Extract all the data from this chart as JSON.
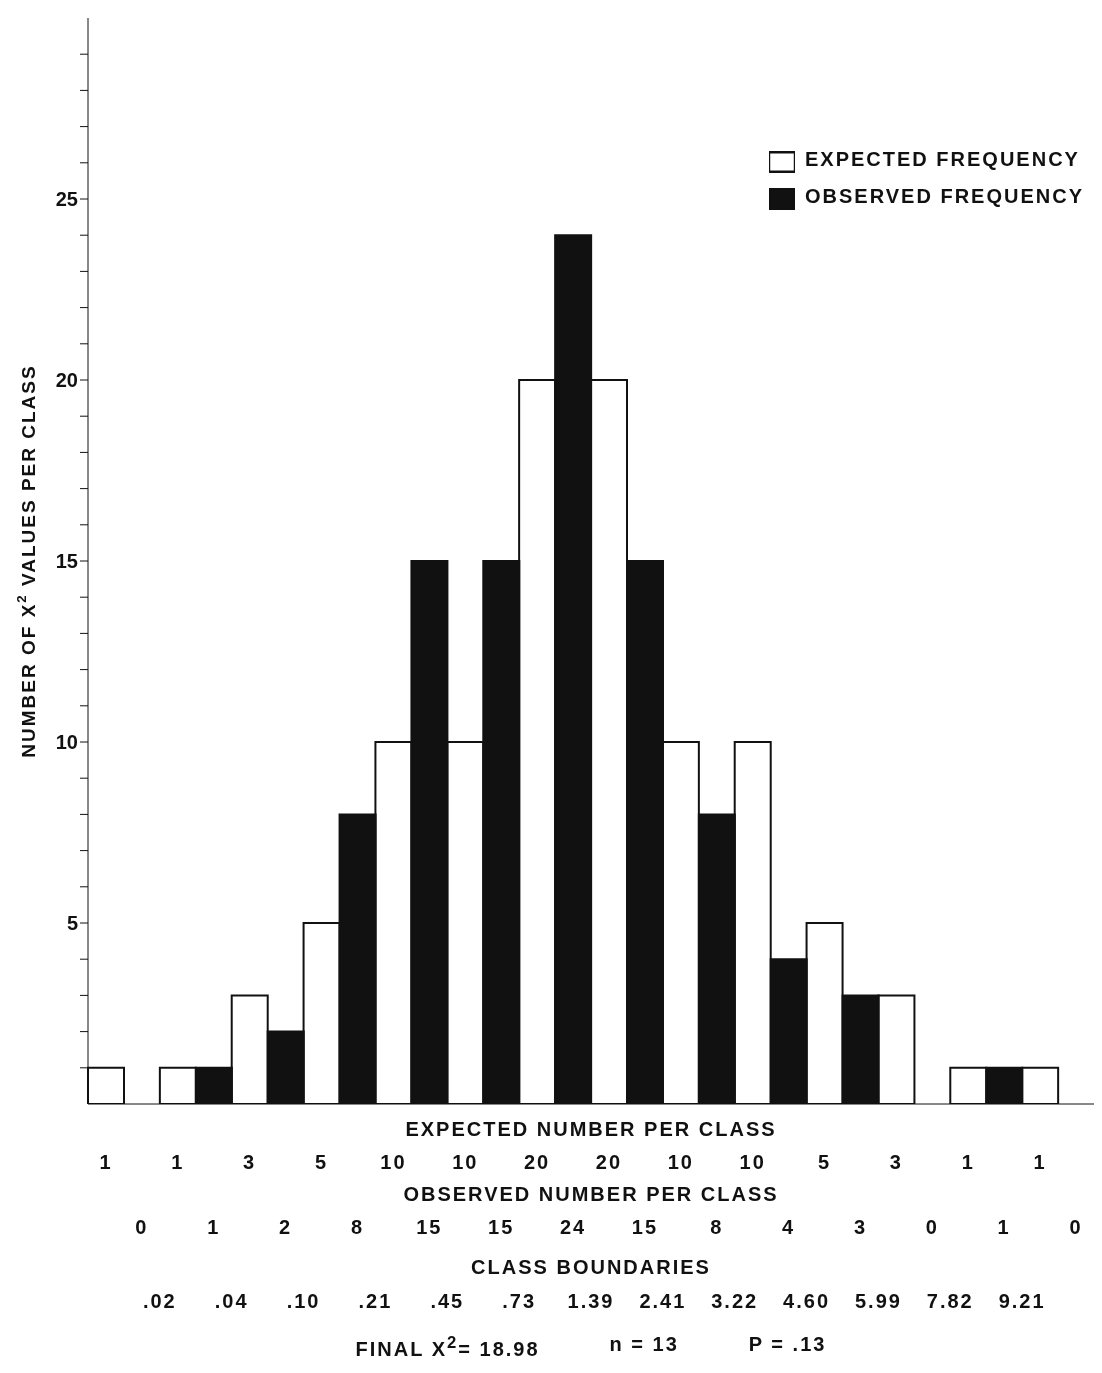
{
  "chart_data": {
    "type": "bar",
    "ylabel": "NUMBER OF X$^{2}$ VALUES PER CLASS",
    "categories": [
      null,
      null,
      null,
      null,
      null,
      null,
      null,
      null,
      null,
      null,
      null,
      null,
      null,
      null
    ],
    "series": [
      {
        "name": "EXPECTED FREQUENCY",
        "color": "#ffffff",
        "values": [
          1,
          1,
          3,
          5,
          10,
          10,
          20,
          20,
          10,
          10,
          5,
          3,
          1,
          1
        ]
      },
      {
        "name": "OBSERVED FREQUENCY",
        "color": "#111111",
        "values": [
          0,
          1,
          2,
          8,
          15,
          15,
          24,
          15,
          8,
          4,
          3,
          0,
          1,
          0
        ]
      }
    ],
    "ylim": [
      0,
      30
    ],
    "yticks": [
      {
        "value": 1,
        "label": null
      },
      {
        "value": 2,
        "label": null
      },
      {
        "value": 3,
        "label": null
      },
      {
        "value": 4,
        "label": null
      },
      5,
      {
        "value": 6,
        "label": null
      },
      {
        "value": 7,
        "label": null
      },
      {
        "value": 8,
        "label": null
      },
      {
        "value": 9,
        "label": null
      },
      10,
      {
        "value": 11,
        "label": null
      },
      {
        "value": 12,
        "label": null
      },
      {
        "value": 13,
        "label": null
      },
      {
        "value": 14,
        "label": null
      },
      15,
      {
        "value": 16,
        "label": null
      },
      {
        "value": 17,
        "label": null
      },
      {
        "value": 18,
        "label": null
      },
      {
        "value": 19,
        "label": null
      },
      20,
      {
        "value": 21,
        "label": null
      },
      {
        "value": 22,
        "label": null
      },
      {
        "value": 23,
        "label": null
      },
      {
        "value": 24,
        "label": null
      },
      25,
      {
        "value": 26,
        "label": null
      },
      {
        "value": 27,
        "label": null
      },
      {
        "value": 28,
        "label": null
      },
      {
        "value": 29,
        "label": null
      }
    ],
    "tick_labels": "y",
    "legend": "top right",
    "data_labels": true,
    "annotations": [
      "EXPECTED NUMBER PER CLASS",
      "OBSERVED NUMBER PER CLASS",
      "CLASS BOUNDARIES",
      ".02 .04 .10 .21 .45 .73 1.39 2.41 3.22 4.60 5.99 7.82 9.21",
      "FINAL X$^{2}$= 18.98",
      "n = 13",
      "P = .13"
    ]
  }
}
